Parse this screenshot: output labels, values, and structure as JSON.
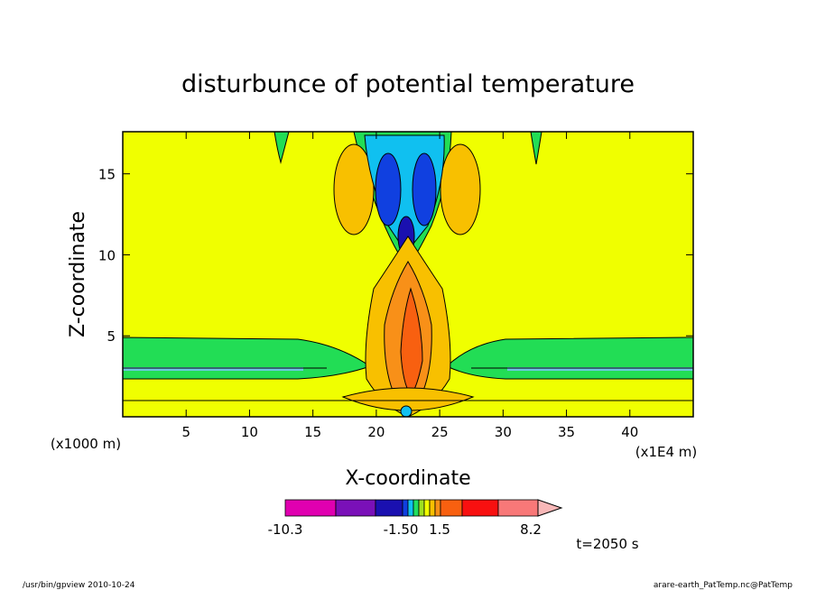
{
  "chart_data": {
    "type": "heatmap",
    "title": "disturbunce of potential temperature",
    "xlabel": "X-coordinate",
    "ylabel": "Z-coordinate",
    "x_unit": "(x1E4 m)",
    "z_unit": "(x1000 m)",
    "xlim": [
      0,
      45
    ],
    "ylim": [
      0,
      17.6
    ],
    "x_ticks": [
      5,
      10,
      15,
      20,
      25,
      30,
      35,
      40
    ],
    "y_ticks": [
      5,
      10,
      15
    ],
    "colorbar": {
      "labels": [
        "-10.3",
        "-1.50",
        "1.5",
        "8.2"
      ],
      "colors": [
        "#e000b0",
        "#7a10b8",
        "#1a10b0",
        "#1040e0",
        "#10c0f0",
        "#20e060",
        "#9fe020",
        "#f0ff00",
        "#f8c000",
        "#f89018",
        "#f86010",
        "#f81010",
        "#f87878",
        "#f8b8b8"
      ]
    },
    "fill_background": "#f0ff00",
    "time_label": "t=2050 s"
  },
  "footer": {
    "left": "/usr/bin/gpview  2010-10-24",
    "right": "arare-earth_PatTemp.nc@PatTemp"
  }
}
